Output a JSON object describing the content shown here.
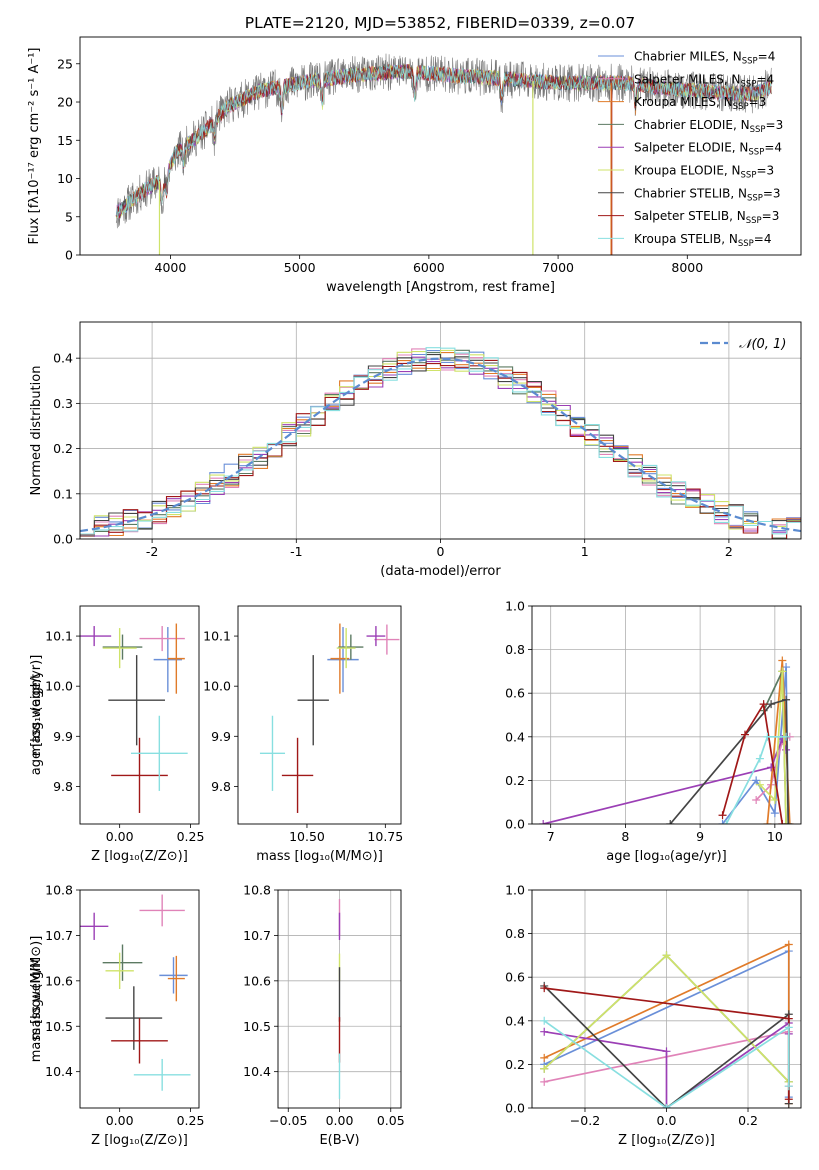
{
  "colors": {
    "chabrier_miles": "#6a8fd8",
    "salpeter_miles": "#e083b8",
    "kroupa_miles": "#e07b2a",
    "chabrier_elodie": "#5c7a62",
    "salpeter_elodie": "#9b3fb5",
    "kroupa_elodie": "#cfe36a",
    "chabrier_stelib": "#444444",
    "salpeter_stelib": "#a01818",
    "kroupa_stelib": "#88dfe0",
    "gauss": "#5b8bd0",
    "data_spectrum": "#777777"
  },
  "chart_data": [
    {
      "id": "spectrum",
      "type": "line",
      "title": "PLATE=2120, MJD=53852, FIBERID=0339, z=0.07",
      "xlabel": "wavelength [Angstrom, rest frame]",
      "ylabel": "Flux [fλ10⁻¹⁷ erg cm⁻² s⁻¹ A⁻¹]",
      "xlim": [
        3300,
        8880
      ],
      "ylim": [
        0,
        28.5
      ],
      "xticks": [
        4000,
        5000,
        6000,
        7000,
        8000
      ],
      "yticks": [
        0,
        5,
        10,
        15,
        20,
        25
      ],
      "legend_position": "top-right",
      "legend": [
        {
          "label": "Chabrier MILES, N",
          "sub": "SSP",
          "suffix": "=4",
          "color_key": "chabrier_miles"
        },
        {
          "label": "Salpeter MILES, N",
          "sub": "SSP",
          "suffix": "=4",
          "color_key": "salpeter_miles"
        },
        {
          "label": "Kroupa MILES, N",
          "sub": "SSP",
          "suffix": "=3",
          "color_key": "kroupa_miles"
        },
        {
          "label": "Chabrier ELODIE, N",
          "sub": "SSP",
          "suffix": "=3",
          "color_key": "chabrier_elodie"
        },
        {
          "label": "Salpeter ELODIE, N",
          "sub": "SSP",
          "suffix": "=4",
          "color_key": "salpeter_elodie"
        },
        {
          "label": "Kroupa ELODIE, N",
          "sub": "SSP",
          "suffix": "=3",
          "color_key": "kroupa_elodie"
        },
        {
          "label": "Chabrier STELIB, N",
          "sub": "SSP",
          "suffix": "=3",
          "color_key": "chabrier_stelib"
        },
        {
          "label": "Salpeter STELIB, N",
          "sub": "SSP",
          "suffix": "=3",
          "color_key": "salpeter_stelib"
        },
        {
          "label": "Kroupa STELIB, N",
          "sub": "SSP",
          "suffix": "=4",
          "color_key": "kroupa_stelib"
        }
      ],
      "continuum": [
        [
          3580,
          5.5
        ],
        [
          3800,
          8.5
        ],
        [
          3950,
          10
        ],
        [
          4050,
          13.5
        ],
        [
          4250,
          16
        ],
        [
          4450,
          19.5
        ],
        [
          4700,
          21.5
        ],
        [
          5000,
          22.5
        ],
        [
          5400,
          23.5
        ],
        [
          5800,
          24
        ],
        [
          6200,
          23.5
        ],
        [
          6600,
          23
        ],
        [
          7000,
          22.5
        ],
        [
          7500,
          22.5
        ],
        [
          8000,
          21.5
        ],
        [
          8500,
          21
        ],
        [
          8650,
          22
        ]
      ]
    },
    {
      "id": "residuals",
      "type": "step",
      "xlabel": "(data-model)/error",
      "ylabel": "Normed distribution",
      "xlim": [
        -2.5,
        2.5
      ],
      "ylim": [
        0,
        0.48
      ],
      "xticks": [
        -2,
        -1,
        0,
        1,
        2
      ],
      "yticks": [
        0.0,
        0.1,
        0.2,
        0.3,
        0.4
      ],
      "grid": true,
      "legend_position": "top-right",
      "legend_label": "𝒩(0, 1)"
    },
    {
      "id": "age-vs-Z",
      "type": "errorbar",
      "xlabel": "Z [log₁₀(Z/Z⊙)]",
      "ylabel": "age  [log₁₀(age/yr)]",
      "xlim": [
        -0.14,
        0.28
      ],
      "ylim": [
        9.725,
        10.16
      ],
      "xticks": [
        0.0,
        0.25
      ],
      "xtick_labels": [
        "0.00",
        "0.25"
      ],
      "yticks": [
        9.8,
        9.9,
        10.0,
        10.1
      ],
      "points": [
        {
          "c": "chabrier_miles",
          "x": 0.17,
          "y": 10.053,
          "xe": 0.05,
          "ye": 0.065
        },
        {
          "c": "salpeter_miles",
          "x": 0.15,
          "y": 10.095,
          "xe": 0.08,
          "ye": 0.025
        },
        {
          "c": "kroupa_miles",
          "x": 0.2,
          "y": 10.055,
          "xe": 0.03,
          "ye": 0.07
        },
        {
          "c": "chabrier_elodie",
          "x": 0.01,
          "y": 10.078,
          "xe": 0.07,
          "ye": 0.025
        },
        {
          "c": "salpeter_elodie",
          "x": -0.09,
          "y": 10.1,
          "xe": 0.06,
          "ye": 0.02
        },
        {
          "c": "kroupa_elodie",
          "x": 0.0,
          "y": 10.076,
          "xe": 0.06,
          "ye": 0.04
        },
        {
          "c": "chabrier_stelib",
          "x": 0.06,
          "y": 9.972,
          "xe": 0.1,
          "ye": 0.09
        },
        {
          "c": "salpeter_stelib",
          "x": 0.07,
          "y": 9.822,
          "xe": 0.1,
          "ye": 0.075
        },
        {
          "c": "kroupa_stelib",
          "x": 0.14,
          "y": 9.866,
          "xe": 0.1,
          "ye": 0.075
        }
      ]
    },
    {
      "id": "age-vs-mass",
      "type": "errorbar",
      "xlabel": "mass [log₁₀(M/M⊙)]",
      "ylabel": "",
      "xlim": [
        10.28,
        10.8
      ],
      "ylim": [
        9.725,
        10.16
      ],
      "xticks": [
        10.5,
        10.75
      ],
      "xtick_labels": [
        "10.50",
        "10.75"
      ],
      "yticks": [
        9.8,
        9.9,
        10.0,
        10.1
      ],
      "points": [
        {
          "c": "chabrier_miles",
          "x": 10.615,
          "y": 10.053,
          "xe": 0.05,
          "ye": 0.065
        },
        {
          "c": "salpeter_miles",
          "x": 10.755,
          "y": 10.093,
          "xe": 0.04,
          "ye": 0.03
        },
        {
          "c": "kroupa_miles",
          "x": 10.605,
          "y": 10.055,
          "xe": 0.03,
          "ye": 0.07
        },
        {
          "c": "chabrier_elodie",
          "x": 10.64,
          "y": 10.078,
          "xe": 0.04,
          "ye": 0.025
        },
        {
          "c": "salpeter_elodie",
          "x": 10.72,
          "y": 10.1,
          "xe": 0.03,
          "ye": 0.02
        },
        {
          "c": "kroupa_elodie",
          "x": 10.625,
          "y": 10.076,
          "xe": 0.03,
          "ye": 0.04
        },
        {
          "c": "chabrier_stelib",
          "x": 10.52,
          "y": 9.972,
          "xe": 0.05,
          "ye": 0.09
        },
        {
          "c": "salpeter_stelib",
          "x": 10.47,
          "y": 9.822,
          "xe": 0.05,
          "ye": 0.075
        },
        {
          "c": "kroupa_stelib",
          "x": 10.39,
          "y": 9.866,
          "xe": 0.04,
          "ye": 0.075
        }
      ]
    },
    {
      "id": "mass-weight-vs-age",
      "type": "line",
      "xlabel": "age  [log₁₀(age/yr)]",
      "ylabel": "mass weight",
      "xlim": [
        6.75,
        10.35
      ],
      "ylim": [
        0,
        1.0
      ],
      "xticks": [
        7,
        8,
        9,
        10
      ],
      "yticks": [
        0.0,
        0.2,
        0.4,
        0.6,
        0.8,
        1.0
      ],
      "grid": true,
      "series": [
        {
          "c": "chabrier_miles",
          "pts": [
            [
              9.3,
              0.0
            ],
            [
              9.75,
              0.2
            ],
            [
              10.0,
              0.05
            ],
            [
              10.15,
              0.72
            ],
            [
              10.18,
              0.0
            ]
          ]
        },
        {
          "c": "salpeter_miles",
          "pts": [
            [
              9.75,
              0.11
            ],
            [
              9.95,
              0.18
            ],
            [
              10.1,
              0.38
            ],
            [
              10.2,
              0.4
            ]
          ]
        },
        {
          "c": "kroupa_miles",
          "pts": [
            [
              9.9,
              0.0
            ],
            [
              10.1,
              0.75
            ],
            [
              10.2,
              0.0
            ]
          ]
        },
        {
          "c": "chabrier_elodie",
          "pts": [
            [
              9.85,
              0.52
            ],
            [
              10.1,
              0.7
            ],
            [
              10.15,
              0.0
            ]
          ]
        },
        {
          "c": "salpeter_elodie",
          "pts": [
            [
              6.9,
              0.0
            ],
            [
              9.95,
              0.26
            ],
            [
              10.1,
              0.39
            ],
            [
              10.15,
              0.34
            ]
          ]
        },
        {
          "c": "kroupa_elodie",
          "pts": [
            [
              9.8,
              0.18
            ],
            [
              10.0,
              0.11
            ],
            [
              10.1,
              0.7
            ],
            [
              10.15,
              0.0
            ]
          ]
        },
        {
          "c": "chabrier_stelib",
          "pts": [
            [
              8.6,
              0.0
            ],
            [
              9.95,
              0.55
            ],
            [
              10.15,
              0.57
            ],
            [
              10.18,
              0.0
            ]
          ]
        },
        {
          "c": "salpeter_stelib",
          "pts": [
            [
              9.3,
              0.04
            ],
            [
              9.6,
              0.41
            ],
            [
              9.85,
              0.55
            ],
            [
              10.1,
              0.0
            ]
          ]
        },
        {
          "c": "kroupa_stelib",
          "pts": [
            [
              9.35,
              0.0
            ],
            [
              9.8,
              0.3
            ],
            [
              9.9,
              0.4
            ],
            [
              10.15,
              0.4
            ]
          ]
        }
      ]
    },
    {
      "id": "mass-vs-Z",
      "type": "errorbar",
      "xlabel": "Z [log₁₀(Z/Z⊙)]",
      "ylabel": "mass [log₁₀(M/M⊙)]",
      "xlim": [
        -0.14,
        0.28
      ],
      "ylim": [
        10.32,
        10.8
      ],
      "xticks": [
        0.0,
        0.25
      ],
      "xtick_labels": [
        "0.00",
        "0.25"
      ],
      "yticks": [
        10.4,
        10.5,
        10.6,
        10.7,
        10.8
      ],
      "points": [
        {
          "c": "chabrier_miles",
          "x": 0.19,
          "y": 10.612,
          "xe": 0.05,
          "ye": 0.04
        },
        {
          "c": "salpeter_miles",
          "x": 0.15,
          "y": 10.755,
          "xe": 0.08,
          "ye": 0.035
        },
        {
          "c": "kroupa_miles",
          "x": 0.2,
          "y": 10.605,
          "xe": 0.03,
          "ye": 0.05
        },
        {
          "c": "chabrier_elodie",
          "x": 0.01,
          "y": 10.64,
          "xe": 0.07,
          "ye": 0.04
        },
        {
          "c": "salpeter_elodie",
          "x": -0.09,
          "y": 10.72,
          "xe": 0.05,
          "ye": 0.03
        },
        {
          "c": "kroupa_elodie",
          "x": 0.0,
          "y": 10.622,
          "xe": 0.05,
          "ye": 0.04
        },
        {
          "c": "chabrier_stelib",
          "x": 0.05,
          "y": 10.518,
          "xe": 0.1,
          "ye": 0.07
        },
        {
          "c": "salpeter_stelib",
          "x": 0.07,
          "y": 10.468,
          "xe": 0.1,
          "ye": 0.05
        },
        {
          "c": "kroupa_stelib",
          "x": 0.15,
          "y": 10.393,
          "xe": 0.1,
          "ye": 0.035
        }
      ]
    },
    {
      "id": "mass-vs-EBV",
      "type": "errorbar",
      "xlabel": "E(B-V)",
      "ylabel": "",
      "xlim": [
        -0.06,
        0.06
      ],
      "ylim": [
        10.32,
        10.8
      ],
      "xticks": [
        -0.05,
        0.0,
        0.05
      ],
      "xtick_labels": [
        "−0.05",
        "0.00",
        "0.05"
      ],
      "yticks": [
        10.4,
        10.5,
        10.6,
        10.7,
        10.8
      ],
      "grid": true,
      "points": [
        {
          "c": "salpeter_miles",
          "x": 0.0,
          "y": 10.74,
          "xe": 0,
          "ye": 0.04
        },
        {
          "c": "salpeter_elodie",
          "x": 0.0,
          "y": 10.72,
          "xe": 0,
          "ye": 0.03
        },
        {
          "c": "kroupa_elodie",
          "x": 0.0,
          "y": 10.63,
          "xe": 0,
          "ye": 0.03
        },
        {
          "c": "chabrier_stelib",
          "x": 0.0,
          "y": 10.57,
          "xe": 0,
          "ye": 0.06
        },
        {
          "c": "salpeter_stelib",
          "x": 0.0,
          "y": 10.47,
          "xe": 0,
          "ye": 0.05
        },
        {
          "c": "kroupa_stelib",
          "x": 0.0,
          "y": 10.39,
          "xe": 0,
          "ye": 0.05
        }
      ]
    },
    {
      "id": "mass-weight-vs-Z",
      "type": "line",
      "xlabel": "Z [log₁₀(Z/Z⊙)]",
      "ylabel": "mass weight",
      "xlim": [
        -0.33,
        0.33
      ],
      "ylim": [
        0,
        1.0
      ],
      "xticks": [
        -0.2,
        0.0,
        0.2
      ],
      "xtick_labels": [
        "−0.2",
        "0.0",
        "0.2"
      ],
      "yticks": [
        0.0,
        0.2,
        0.4,
        0.6,
        0.8,
        1.0
      ],
      "grid": true,
      "series": [
        {
          "c": "chabrier_miles",
          "pts": [
            [
              -0.3,
              0.2
            ],
            [
              0.3,
              0.72
            ],
            [
              0.3,
              0.05
            ]
          ]
        },
        {
          "c": "salpeter_miles",
          "pts": [
            [
              -0.3,
              0.12
            ],
            [
              0.3,
              0.35
            ],
            [
              0.3,
              0.1
            ]
          ]
        },
        {
          "c": "kroupa_miles",
          "pts": [
            [
              -0.3,
              0.23
            ],
            [
              0.3,
              0.75
            ],
            [
              0.3,
              0.02
            ]
          ]
        },
        {
          "c": "chabrier_elodie",
          "pts": [
            [
              -0.3,
              0.18
            ],
            [
              0.0,
              0.7
            ],
            [
              0.3,
              0.12
            ]
          ]
        },
        {
          "c": "salpeter_elodie",
          "pts": [
            [
              -0.3,
              0.35
            ],
            [
              0.0,
              0.26
            ],
            [
              0.0,
              0.0
            ],
            [
              0.3,
              0.39
            ],
            [
              0.3,
              0.34
            ]
          ]
        },
        {
          "c": "kroupa_elodie",
          "pts": [
            [
              -0.3,
              0.18
            ],
            [
              0.0,
              0.7
            ],
            [
              0.3,
              0.12
            ]
          ]
        },
        {
          "c": "chabrier_stelib",
          "pts": [
            [
              -0.3,
              0.56
            ],
            [
              0.0,
              0.0
            ],
            [
              0.3,
              0.43
            ],
            [
              0.3,
              0.02
            ]
          ]
        },
        {
          "c": "salpeter_stelib",
          "pts": [
            [
              -0.3,
              0.55
            ],
            [
              0.3,
              0.41
            ],
            [
              0.3,
              0.04
            ]
          ]
        },
        {
          "c": "kroupa_stelib",
          "pts": [
            [
              -0.3,
              0.4
            ],
            [
              0.0,
              0.0
            ],
            [
              0.3,
              0.37
            ],
            [
              0.3,
              0.1
            ]
          ]
        }
      ]
    }
  ]
}
